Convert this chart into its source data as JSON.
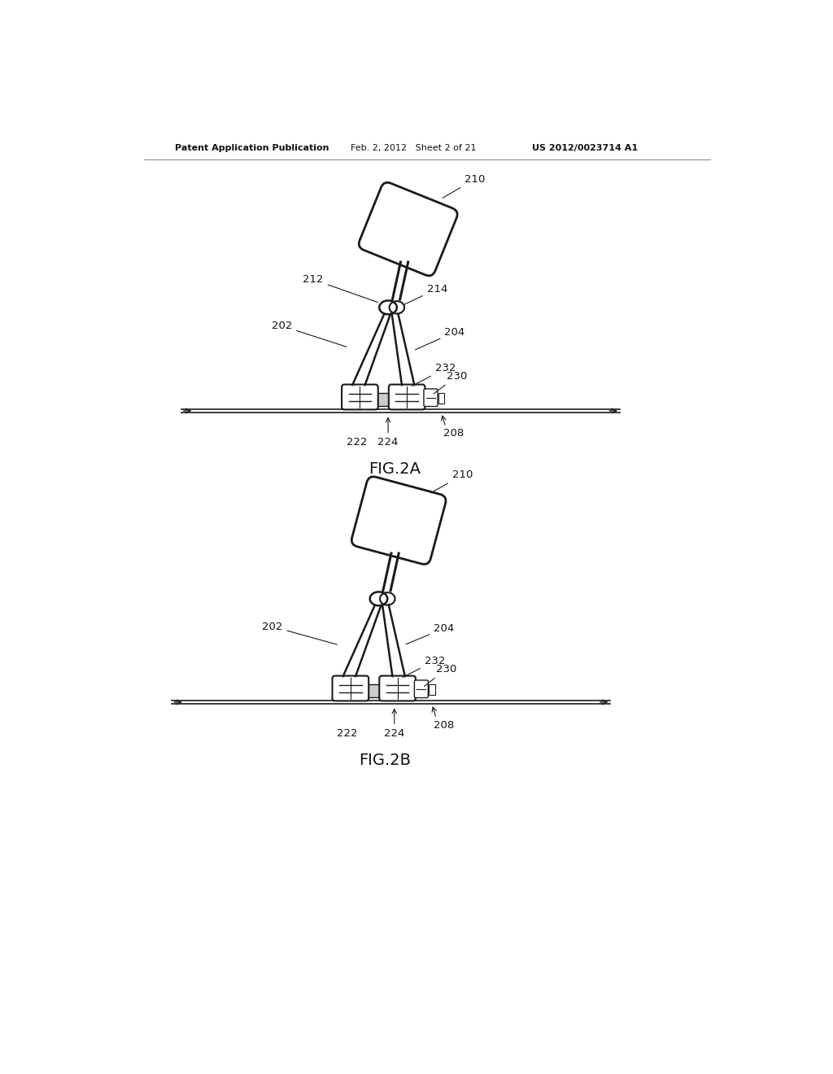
{
  "background_color": "#ffffff",
  "line_color": "#1a1a1a",
  "header_left": "Patent Application Publication",
  "header_mid": "Feb. 2, 2012   Sheet 2 of 21",
  "header_right": "US 2012/0023714 A1",
  "fig2a_label": "FIG.2A",
  "fig2b_label": "FIG.2B"
}
